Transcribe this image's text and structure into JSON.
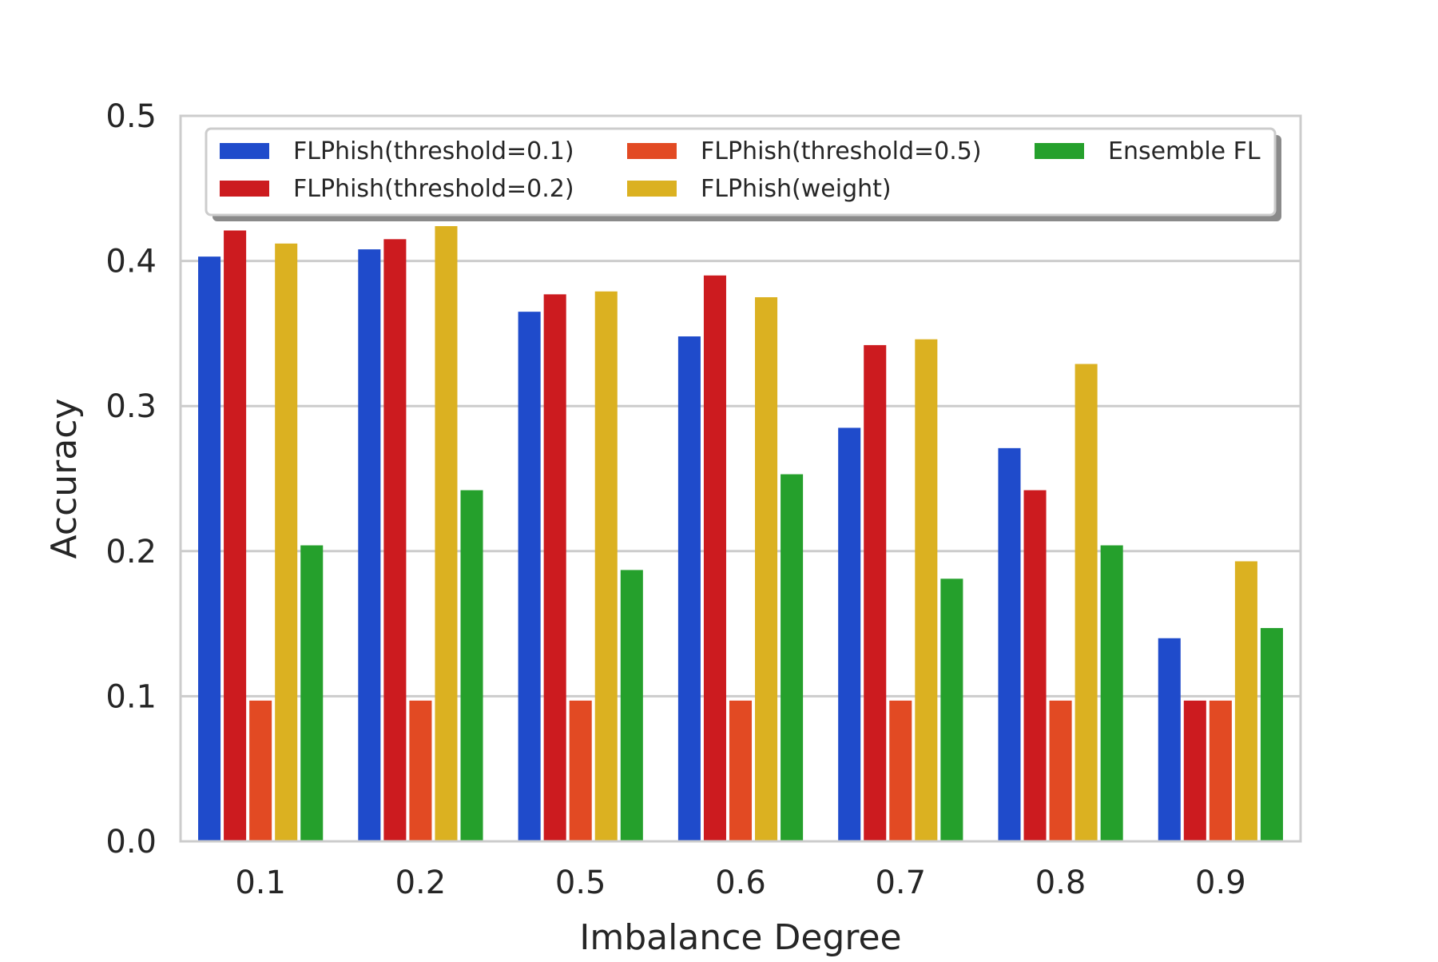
{
  "chart_data": {
    "type": "bar",
    "title": "",
    "xlabel": "Imbalance Degree",
    "ylabel": "Accuracy",
    "ylim": [
      0,
      0.5
    ],
    "yticks": [
      "0.0",
      "0.1",
      "0.2",
      "0.3",
      "0.4",
      "0.5"
    ],
    "grid": "horizontal",
    "legend_position": "top",
    "categories": [
      "0.1",
      "0.2",
      "0.5",
      "0.6",
      "0.7",
      "0.8",
      "0.9"
    ],
    "series": [
      {
        "name": "FLPhish(threshold=0.1)",
        "color": "#1f4bcb",
        "values": [
          0.403,
          0.408,
          0.365,
          0.348,
          0.285,
          0.271,
          0.14
        ]
      },
      {
        "name": "FLPhish(threshold=0.2)",
        "color": "#cc1b1f",
        "values": [
          0.421,
          0.415,
          0.377,
          0.39,
          0.342,
          0.242,
          0.097
        ]
      },
      {
        "name": "FLPhish(threshold=0.5)",
        "color": "#e24a23",
        "values": [
          0.097,
          0.097,
          0.097,
          0.097,
          0.097,
          0.097,
          0.097
        ]
      },
      {
        "name": "FLPhish(weight)",
        "color": "#dbb121",
        "values": [
          0.412,
          0.424,
          0.379,
          0.375,
          0.346,
          0.329,
          0.193
        ]
      },
      {
        "name": "Ensemble FL",
        "color": "#25a02c",
        "values": [
          0.204,
          0.242,
          0.187,
          0.253,
          0.181,
          0.204,
          0.147
        ]
      }
    ]
  }
}
